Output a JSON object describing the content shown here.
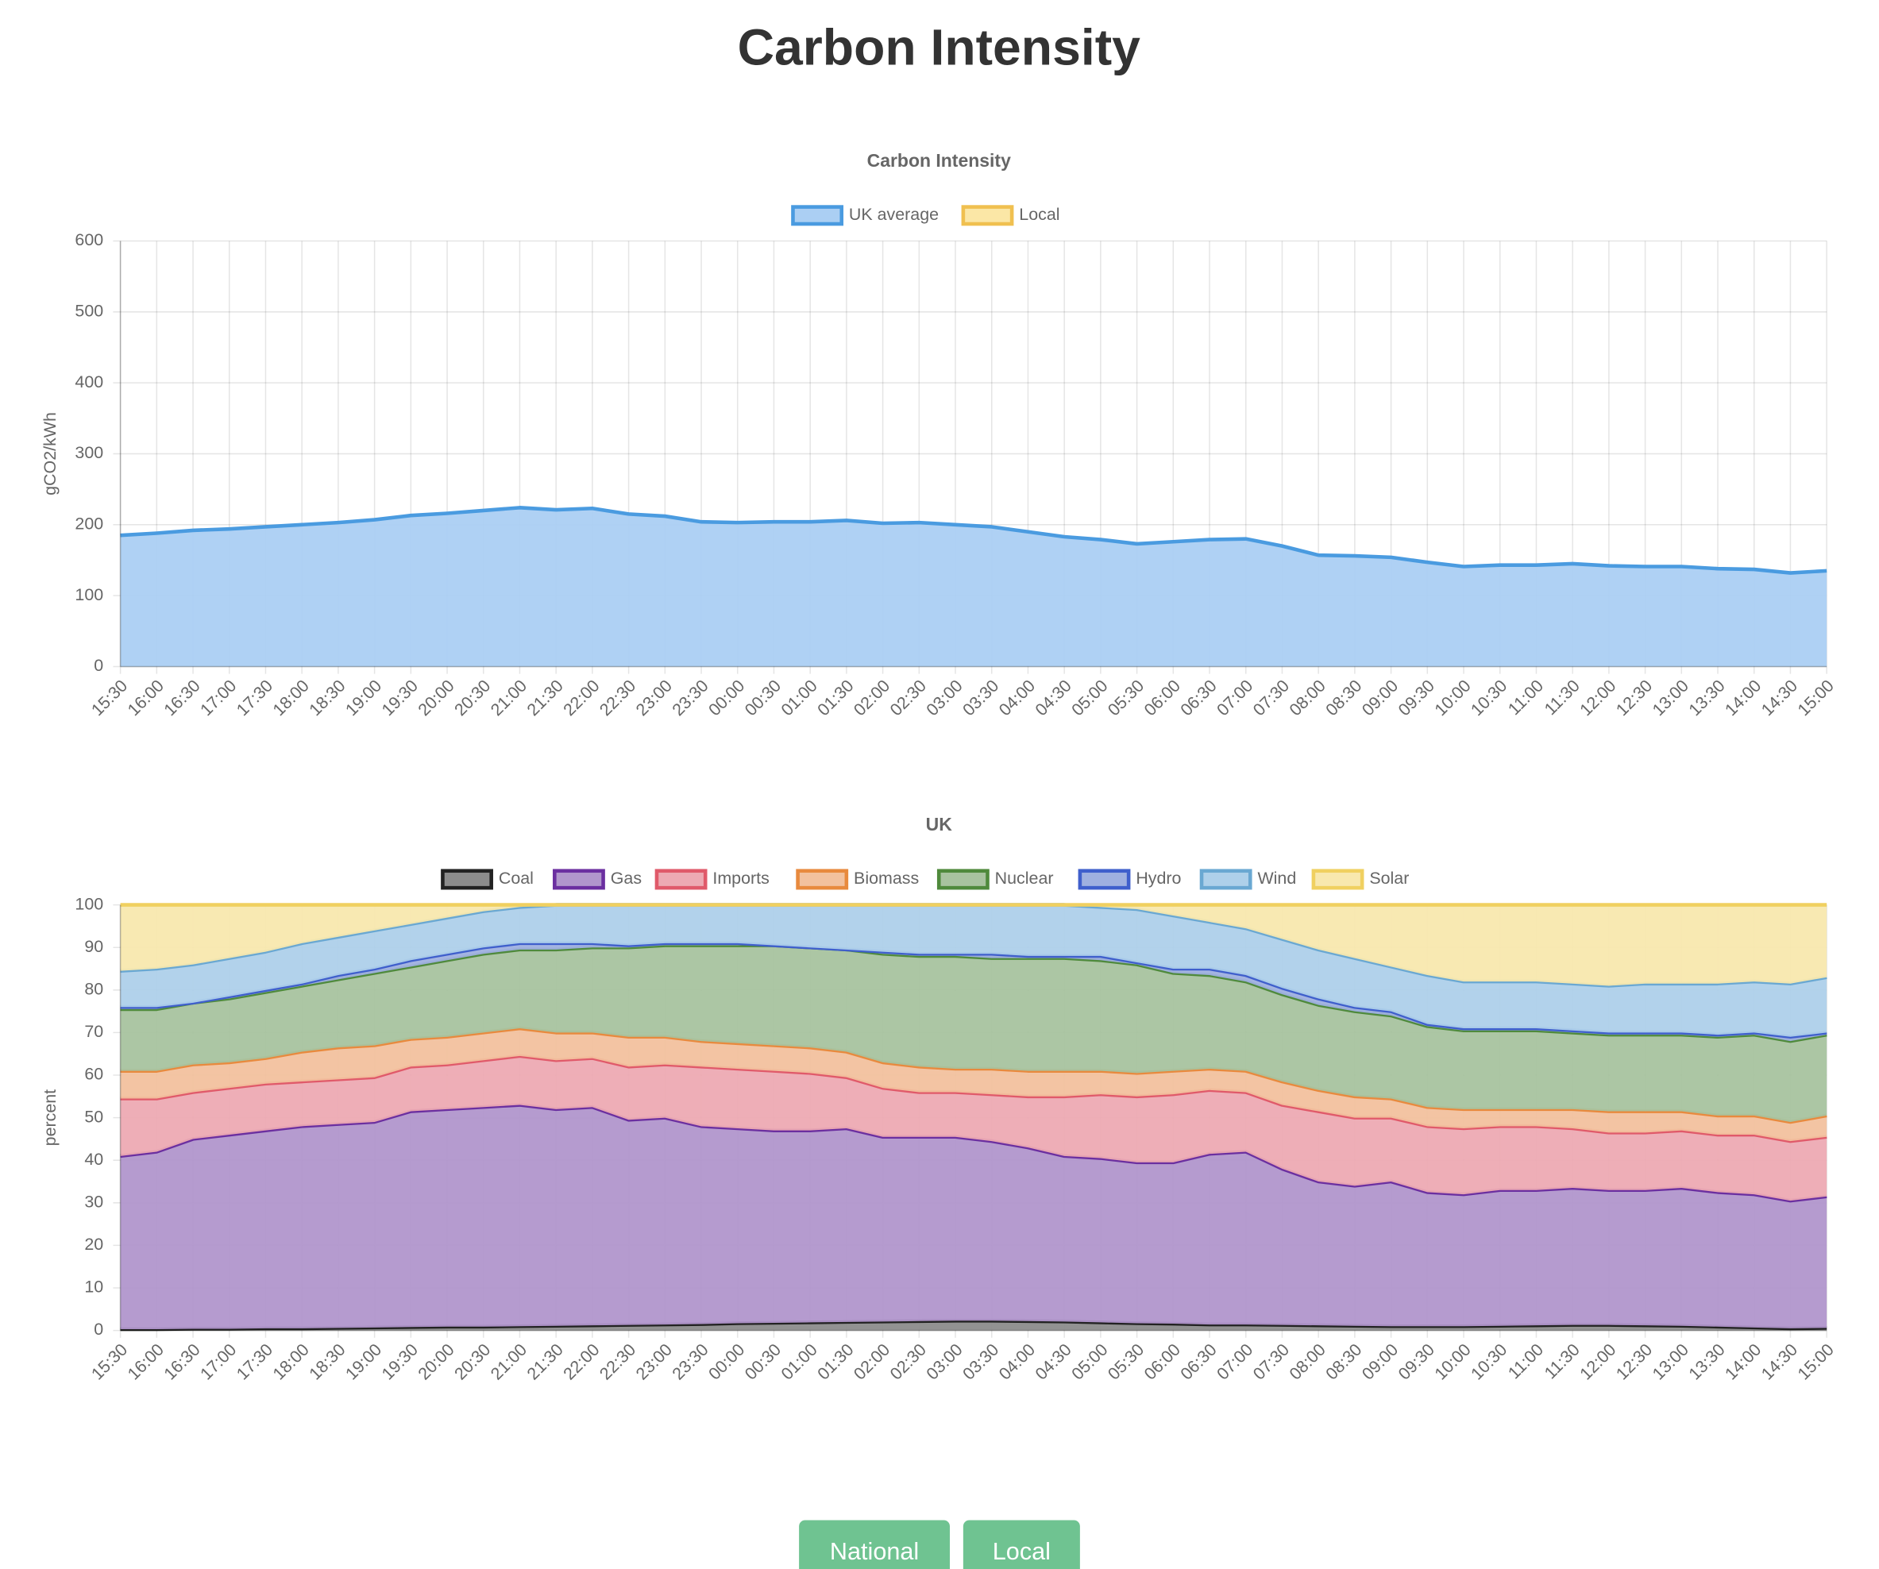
{
  "page_title": "Carbon Intensity",
  "buttons": [
    "National",
    "Local"
  ],
  "chart_data": [
    {
      "type": "area",
      "title": "Carbon Intensity",
      "y_label": "gCO2/kWh",
      "categories": [
        "15:30",
        "16:00",
        "16:30",
        "17:00",
        "17:30",
        "18:00",
        "18:30",
        "19:00",
        "19:30",
        "20:00",
        "20:30",
        "21:00",
        "21:30",
        "22:00",
        "22:30",
        "23:00",
        "23:30",
        "00:00",
        "00:30",
        "01:00",
        "01:30",
        "02:00",
        "02:30",
        "03:00",
        "03:30",
        "04:00",
        "04:30",
        "05:00",
        "05:30",
        "06:00",
        "06:30",
        "07:00",
        "07:30",
        "08:00",
        "08:30",
        "09:00",
        "09:30",
        "10:00",
        "10:30",
        "11:00",
        "11:30",
        "12:00",
        "12:30",
        "13:00",
        "13:30",
        "14:00",
        "14:30",
        "15:00"
      ],
      "series": [
        {
          "name": "UK average",
          "color": "#4a9be0",
          "fill": "#abcff3",
          "values": [
            185,
            188,
            192,
            194,
            197,
            200,
            203,
            207,
            213,
            216,
            220,
            224,
            221,
            223,
            215,
            212,
            204,
            203,
            204,
            204,
            206,
            202,
            203,
            200,
            197,
            190,
            183,
            179,
            173,
            176,
            179,
            180,
            170,
            157,
            156,
            154,
            147,
            141,
            143,
            143,
            145,
            142,
            141,
            141,
            138,
            137,
            132,
            135
          ]
        },
        {
          "name": "Local",
          "color": "#f0c050",
          "fill": "#fbe7a6",
          "values": [
            null,
            null,
            null,
            null,
            null,
            null,
            null,
            null,
            null,
            null,
            null,
            null,
            null,
            null,
            null,
            null,
            null,
            null,
            null,
            null,
            null,
            null,
            null,
            null,
            null,
            null,
            null,
            null,
            null,
            null,
            null,
            null,
            null,
            null,
            null,
            null,
            null,
            null,
            null,
            null,
            null,
            null,
            null,
            null,
            null,
            null,
            null,
            null
          ]
        }
      ],
      "ylim": [
        0,
        600
      ],
      "yticks": [
        0,
        100,
        200,
        300,
        400,
        500,
        600
      ],
      "grid": true,
      "stacked": false
    },
    {
      "type": "area",
      "title": "UK",
      "y_label": "percent",
      "categories": [
        "15:30",
        "16:00",
        "16:30",
        "17:00",
        "17:30",
        "18:00",
        "18:30",
        "19:00",
        "19:30",
        "20:00",
        "20:30",
        "21:00",
        "21:30",
        "22:00",
        "22:30",
        "23:00",
        "23:30",
        "00:00",
        "00:30",
        "01:00",
        "01:30",
        "02:00",
        "02:30",
        "03:00",
        "03:30",
        "04:00",
        "04:30",
        "05:00",
        "05:30",
        "06:00",
        "06:30",
        "07:00",
        "07:30",
        "08:00",
        "08:30",
        "09:00",
        "09:30",
        "10:00",
        "10:30",
        "11:00",
        "11:30",
        "12:00",
        "12:30",
        "13:00",
        "13:30",
        "14:00",
        "14:30",
        "15:00"
      ],
      "series": [
        {
          "name": "Coal",
          "color": "#222222",
          "fill": "#8c8c8c",
          "values": [
            0.3,
            0.3,
            0.4,
            0.4,
            0.5,
            0.5,
            0.6,
            0.7,
            0.8,
            0.9,
            0.9,
            1.0,
            1.1,
            1.2,
            1.3,
            1.4,
            1.5,
            1.7,
            1.8,
            1.9,
            2.0,
            2.1,
            2.2,
            2.3,
            2.3,
            2.2,
            2.1,
            1.9,
            1.7,
            1.6,
            1.4,
            1.4,
            1.3,
            1.2,
            1.1,
            1.0,
            1.0,
            1.0,
            1.1,
            1.2,
            1.3,
            1.3,
            1.2,
            1.1,
            0.9,
            0.7,
            0.5,
            0.6
          ]
        },
        {
          "name": "Gas",
          "color": "#6b2fa0",
          "fill": "#b196cc",
          "values": [
            40.7,
            41.7,
            44.6,
            45.6,
            46.5,
            47.5,
            47.9,
            48.3,
            50.7,
            51.1,
            51.6,
            52,
            50.9,
            51.3,
            48.2,
            48.6,
            46.5,
            45.8,
            45.2,
            45.1,
            45.5,
            43.4,
            43.3,
            43.2,
            42.2,
            40.8,
            38.9,
            38.6,
            37.8,
            37.9,
            40.1,
            40.6,
            36.7,
            33.8,
            32.9,
            34,
            31.5,
            31,
            31.9,
            31.8,
            32.2,
            31.7,
            31.8,
            32.4,
            31.6,
            31.3,
            30,
            30.9
          ]
        },
        {
          "name": "Imports",
          "color": "#e05a6a",
          "fill": "#edaab3",
          "values": [
            13.5,
            12.5,
            11,
            11,
            11,
            10.5,
            10.5,
            10.5,
            10.5,
            10.5,
            11,
            11.5,
            11.5,
            11.5,
            12.5,
            12.5,
            14,
            14,
            14,
            13.5,
            12,
            11.5,
            10.5,
            10.5,
            11,
            12,
            14,
            15,
            15.5,
            16,
            15,
            14,
            15,
            16.5,
            16,
            15,
            15.5,
            15.5,
            15,
            15,
            14,
            13.5,
            13.5,
            13.5,
            13.5,
            14,
            14,
            14
          ]
        },
        {
          "name": "Biomass",
          "color": "#e88a3e",
          "fill": "#f2c19e",
          "values": [
            6.5,
            6.5,
            6.5,
            6,
            6,
            7,
            7.5,
            7.5,
            6.5,
            6.5,
            6.5,
            6.5,
            6.5,
            6,
            7,
            6.5,
            6,
            6,
            6,
            6,
            6,
            6,
            6,
            5.5,
            6,
            6,
            6,
            5.5,
            5.5,
            5.5,
            5,
            5,
            5.5,
            5,
            5,
            4.5,
            4.5,
            4.5,
            4,
            4,
            4.5,
            5,
            5,
            4.5,
            4.5,
            4.5,
            4.5,
            5
          ]
        },
        {
          "name": "Nuclear",
          "color": "#4f8a3c",
          "fill": "#a8c39f",
          "values": [
            14.5,
            14.5,
            14.5,
            15,
            15.5,
            15.5,
            16,
            17,
            17,
            18,
            18.5,
            18.5,
            19.5,
            20,
            21,
            21.5,
            22.5,
            23,
            23.5,
            23.5,
            24,
            25.5,
            26,
            26.5,
            26,
            26.5,
            26.5,
            26,
            25.5,
            23,
            22,
            21,
            20.5,
            20,
            20,
            19.5,
            19,
            18.5,
            18.5,
            18.5,
            18,
            18,
            18,
            18,
            18.5,
            19,
            19,
            19
          ]
        },
        {
          "name": "Hydro",
          "color": "#3f5fcc",
          "fill": "#9fb0e0",
          "values": [
            0.5,
            0.5,
            0,
            0.5,
            0.5,
            0.5,
            1,
            1,
            1.5,
            1.5,
            1.5,
            1.5,
            1.5,
            1,
            0.5,
            0.5,
            0.5,
            0.5,
            0,
            0,
            0,
            0.5,
            0.5,
            0.5,
            1,
            0.5,
            0.5,
            1,
            0.5,
            1,
            1.5,
            1.5,
            1.5,
            1.5,
            1,
            1,
            0.5,
            0.5,
            0.5,
            0.5,
            0.5,
            0.5,
            0.5,
            0.5,
            0.5,
            0.5,
            1,
            0.5
          ]
        },
        {
          "name": "Wind",
          "color": "#6aa8d2",
          "fill": "#aed0ea",
          "values": [
            8.5,
            9,
            9,
            9,
            9,
            9.5,
            9,
            9,
            8.5,
            8.5,
            8.5,
            8.5,
            9,
            9,
            9.5,
            9,
            9,
            9,
            9.5,
            10,
            10.5,
            11,
            11.5,
            11.5,
            11.5,
            12,
            12,
            11.5,
            12.5,
            12.5,
            11,
            11,
            11.5,
            11.5,
            11.5,
            10.5,
            11.5,
            11,
            11,
            11,
            11,
            11,
            11.5,
            11.5,
            12,
            12,
            12.5,
            13
          ]
        },
        {
          "name": "Solar",
          "color": "#f0d060",
          "fill": "#f8e8ae",
          "values": [
            15.5,
            15,
            14,
            12.5,
            11,
            9,
            7.5,
            6,
            4.5,
            3,
            1.5,
            0.5,
            0,
            0,
            0,
            0,
            0,
            0,
            0,
            0,
            0,
            0,
            0,
            0,
            0,
            0,
            0,
            0.5,
            1,
            2.5,
            4,
            5.5,
            8,
            10.5,
            12.5,
            14.5,
            16.5,
            18,
            18,
            18,
            18.5,
            19,
            18.5,
            18.5,
            18.5,
            18,
            18.5,
            17
          ]
        }
      ],
      "ylim": [
        0,
        100
      ],
      "yticks": [
        0,
        10,
        20,
        30,
        40,
        50,
        60,
        70,
        80,
        90,
        100
      ],
      "grid": true,
      "stacked": true
    }
  ]
}
